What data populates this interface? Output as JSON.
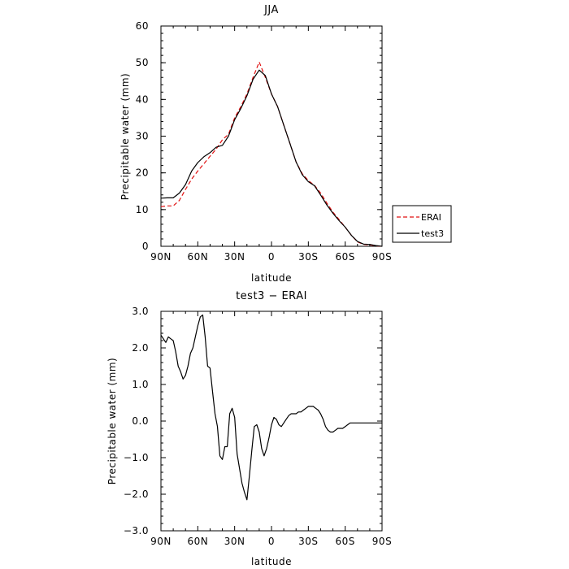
{
  "chart_data": [
    {
      "type": "line",
      "title": "JJA",
      "xlabel": "latitude",
      "ylabel": "Precipitable water (mm)",
      "xlim": [
        90,
        -90
      ],
      "ylim": [
        0,
        60
      ],
      "x_ticks": [
        90,
        60,
        30,
        0,
        -30,
        -60,
        -90
      ],
      "x_tick_labels": [
        "90N",
        "60N",
        "30N",
        "0",
        "30S",
        "60S",
        "90S"
      ],
      "y_ticks": [
        0,
        10,
        20,
        30,
        40,
        50,
        60
      ],
      "y_tick_labels": [
        "0",
        "10",
        "20",
        "30",
        "40",
        "50",
        "60"
      ],
      "legend_placement": "right-outside",
      "series": [
        {
          "name": "ERAI",
          "color": "#e01010",
          "style": "dashed",
          "x": [
            90,
            85,
            80,
            75,
            70,
            65,
            60,
            55,
            50,
            45,
            40,
            35,
            30,
            25,
            20,
            15,
            10,
            5,
            0,
            -5,
            -10,
            -15,
            -20,
            -25,
            -30,
            -35,
            -40,
            -45,
            -50,
            -55,
            -60,
            -65,
            -70,
            -75,
            -80,
            -85,
            -90
          ],
          "values": [
            10.8,
            11.0,
            11.0,
            12.5,
            15.5,
            18.3,
            20.5,
            22.5,
            24.5,
            26.5,
            29.0,
            30.5,
            35.0,
            38.0,
            41.5,
            46.0,
            50.2,
            46.0,
            41.5,
            38.0,
            33.0,
            28.0,
            23.0,
            19.8,
            17.9,
            16.6,
            14.5,
            11.8,
            9.3,
            7.3,
            5.2,
            3.0,
            1.2,
            0.5,
            0.4,
            0.1,
            0.0
          ]
        },
        {
          "name": "test3",
          "color": "#000000",
          "style": "solid",
          "x": [
            90,
            85,
            80,
            75,
            70,
            65,
            60,
            55,
            50,
            45,
            40,
            35,
            30,
            25,
            20,
            15,
            10,
            5,
            0,
            -5,
            -10,
            -15,
            -20,
            -25,
            -30,
            -35,
            -40,
            -45,
            -50,
            -55,
            -60,
            -65,
            -70,
            -75,
            -80,
            -85,
            -90
          ],
          "values": [
            13.1,
            13.2,
            13.2,
            14.5,
            16.8,
            20.5,
            22.8,
            24.4,
            25.5,
            27.0,
            27.5,
            30.0,
            34.5,
            37.5,
            41.0,
            45.5,
            48.0,
            46.5,
            41.5,
            38.0,
            33.0,
            28.0,
            23.0,
            19.5,
            17.6,
            16.5,
            14.0,
            11.3,
            9.0,
            7.0,
            5.2,
            3.0,
            1.3,
            0.6,
            0.5,
            0.2,
            0.0
          ]
        }
      ]
    },
    {
      "type": "line",
      "title": "test3 − ERAI",
      "xlabel": "latitude",
      "ylabel": "Precipitable water (mm)",
      "xlim": [
        90,
        -90
      ],
      "ylim": [
        -3,
        3
      ],
      "x_ticks": [
        90,
        60,
        30,
        0,
        -30,
        -60,
        -90
      ],
      "x_tick_labels": [
        "90N",
        "60N",
        "30N",
        "0",
        "30S",
        "60S",
        "90S"
      ],
      "y_ticks": [
        3,
        2,
        1,
        0,
        -1,
        -2,
        -3
      ],
      "y_tick_labels": [
        "3.0",
        "2.0",
        "1.0",
        "0.0",
        "−1.0",
        "−2.0",
        "−3.0"
      ],
      "series": [
        {
          "color": "#000000",
          "style": "solid",
          "x": [
            90,
            86,
            84,
            82,
            80,
            78,
            76,
            74,
            72,
            70,
            68,
            66,
            64,
            62,
            60,
            58,
            56,
            54,
            52,
            50,
            48,
            46,
            44,
            42,
            40,
            38,
            36,
            34,
            32,
            30,
            28,
            26,
            24,
            22,
            20,
            18,
            16,
            14,
            12,
            10,
            8,
            6,
            4,
            2,
            0,
            -2,
            -4,
            -6,
            -8,
            -10,
            -12,
            -14,
            -16,
            -18,
            -20,
            -22,
            -24,
            -26,
            -28,
            -30,
            -32,
            -34,
            -36,
            -38,
            -40,
            -42,
            -44,
            -46,
            -48,
            -50,
            -52,
            -54,
            -56,
            -58,
            -60,
            -62,
            -64,
            -66,
            -68,
            -70,
            -72,
            -74,
            -76,
            -78,
            -80,
            -82,
            -84,
            -86,
            -88,
            -90
          ],
          "values": [
            2.35,
            2.15,
            2.3,
            2.25,
            2.2,
            1.9,
            1.5,
            1.35,
            1.15,
            1.25,
            1.5,
            1.85,
            2.0,
            2.3,
            2.6,
            2.85,
            2.9,
            2.3,
            1.5,
            1.45,
            0.8,
            0.2,
            -0.15,
            -0.95,
            -1.05,
            -0.7,
            -0.7,
            0.2,
            0.35,
            0.1,
            -0.9,
            -1.3,
            -1.7,
            -1.95,
            -2.15,
            -1.5,
            -0.8,
            -0.15,
            -0.1,
            -0.3,
            -0.75,
            -0.95,
            -0.75,
            -0.45,
            -0.1,
            0.1,
            0.05,
            -0.1,
            -0.15,
            -0.05,
            0.05,
            0.15,
            0.2,
            0.2,
            0.2,
            0.25,
            0.25,
            0.3,
            0.35,
            0.4,
            0.4,
            0.4,
            0.35,
            0.3,
            0.2,
            0.05,
            -0.15,
            -0.25,
            -0.3,
            -0.3,
            -0.25,
            -0.2,
            -0.2,
            -0.2,
            -0.15,
            -0.1,
            -0.05,
            -0.05,
            -0.05,
            -0.05,
            -0.05,
            -0.05,
            -0.05,
            -0.05,
            -0.05,
            -0.05,
            -0.05,
            -0.05,
            -0.05,
            -0.05
          ]
        }
      ]
    }
  ]
}
